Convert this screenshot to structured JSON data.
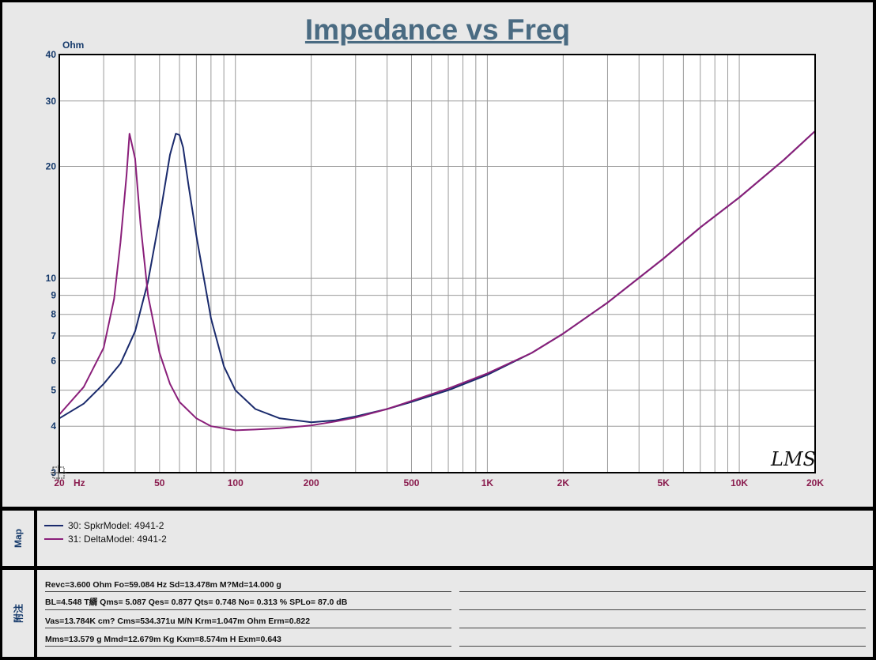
{
  "chart": {
    "title": "Impedance vs Freq",
    "y_unit": "Ohm",
    "x_unit": "Hz",
    "watermark": "LMS",
    "colors": {
      "background": "#ffffff",
      "grid": "#9a9a9a",
      "frame": "#000000"
    }
  },
  "chart_data": {
    "type": "line",
    "title": "Impedance vs Freq",
    "ylabel": "Ohm",
    "xlabel": "Hz",
    "x_scale": "log",
    "y_scale": "log",
    "xlim": [
      20,
      20000
    ],
    "ylim": [
      3,
      40
    ],
    "grid": true,
    "x_ticks": [
      {
        "v": 20,
        "label": "20"
      },
      {
        "v": 50,
        "label": "50"
      },
      {
        "v": 100,
        "label": "100"
      },
      {
        "v": 200,
        "label": "200"
      },
      {
        "v": 500,
        "label": "500"
      },
      {
        "v": 1000,
        "label": "1K"
      },
      {
        "v": 2000,
        "label": "2K"
      },
      {
        "v": 5000,
        "label": "5K"
      },
      {
        "v": 10000,
        "label": "10K"
      },
      {
        "v": 20000,
        "label": "20K"
      }
    ],
    "y_ticks": [
      {
        "v": 3,
        "label": "3"
      },
      {
        "v": 4,
        "label": "4"
      },
      {
        "v": 5,
        "label": "5"
      },
      {
        "v": 6,
        "label": "6"
      },
      {
        "v": 7,
        "label": "7"
      },
      {
        "v": 8,
        "label": "8"
      },
      {
        "v": 9,
        "label": "9"
      },
      {
        "v": 10,
        "label": "10"
      },
      {
        "v": 20,
        "label": "20"
      },
      {
        "v": 30,
        "label": "30"
      },
      {
        "v": 40,
        "label": "40"
      }
    ],
    "series": [
      {
        "name": "30: SpkrModel: 4941-2",
        "color": "#1a2a6c",
        "x": [
          20,
          25,
          30,
          35,
          40,
          45,
          50,
          55,
          58,
          60,
          62,
          65,
          70,
          80,
          90,
          100,
          120,
          150,
          200,
          250,
          300,
          400,
          500,
          700,
          1000,
          1500,
          2000,
          3000,
          5000,
          7000,
          10000,
          15000,
          20000
        ],
        "y": [
          4.2,
          4.6,
          5.2,
          5.9,
          7.2,
          9.8,
          14.5,
          21.5,
          24.5,
          24.3,
          22.5,
          18.0,
          13.0,
          7.8,
          5.8,
          5.0,
          4.45,
          4.2,
          4.1,
          4.15,
          4.25,
          4.45,
          4.65,
          5.0,
          5.5,
          6.3,
          7.1,
          8.6,
          11.3,
          13.7,
          16.5,
          20.8,
          24.9
        ]
      },
      {
        "name": "31: DeltaModel: 4941-2",
        "color": "#8a1f7a",
        "x": [
          20,
          25,
          30,
          33,
          35,
          37,
          38,
          40,
          42,
          45,
          50,
          55,
          60,
          70,
          80,
          100,
          120,
          150,
          200,
          250,
          300,
          400,
          500,
          700,
          1000,
          1500,
          2000,
          3000,
          5000,
          7000,
          10000,
          15000,
          20000
        ],
        "y": [
          4.3,
          5.1,
          6.5,
          8.8,
          12.5,
          19.0,
          24.5,
          21.0,
          14.0,
          9.0,
          6.3,
          5.2,
          4.65,
          4.2,
          4.0,
          3.9,
          3.92,
          3.95,
          4.02,
          4.12,
          4.22,
          4.45,
          4.68,
          5.05,
          5.55,
          6.3,
          7.1,
          8.6,
          11.3,
          13.7,
          16.5,
          20.8,
          24.9
        ]
      }
    ]
  },
  "map_panel": {
    "label": "Map",
    "legend": [
      {
        "text": "30: SpkrModel: 4941-2",
        "color": "#1a2a6c"
      },
      {
        "text": "31: DeltaModel: 4941-2",
        "color": "#8a1f7a"
      }
    ]
  },
  "notes_panel": {
    "label": "附注",
    "lines": [
      "Revc=3.600 Ohm  Fo=59.084 Hz  Sd=13.478m M?Md=14.000 g",
      "BL=4.548 T縃  Qms= 5.087  Qes= 0.877  Qts= 0.748  No= 0.313 %  SPLo= 87.0 dB",
      "Vas=13.784K cm? Cms=534.371u M/N  Krm=1.047m Ohm  Erm=0.822",
      "Mms=13.579 g  Mmd=12.679m Kg  Kxm=8.574m H  Exm=0.643"
    ]
  }
}
